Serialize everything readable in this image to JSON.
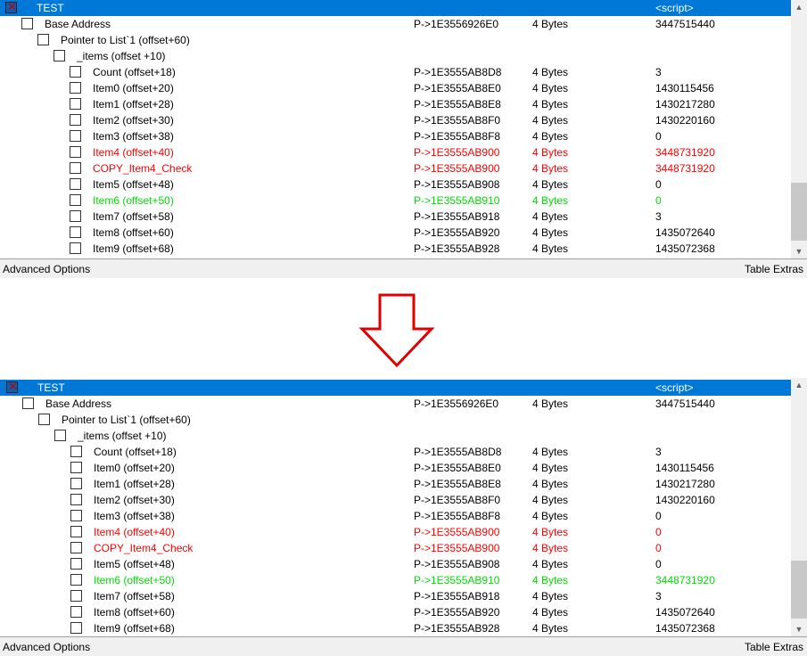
{
  "labels": {
    "advanced_options": "Advanced Options",
    "table_extras": "Table Extras"
  },
  "header_row": {
    "description": "TEST",
    "value": "<script>"
  },
  "panels": [
    {
      "name": "before",
      "rows": [
        {
          "desc": "Base Address",
          "addr": "P->1E3556926E0",
          "type": "4 Bytes",
          "value": "3447515440",
          "color": "normal",
          "indent": 1
        },
        {
          "desc": "Pointer to List`1  (offset+60)",
          "addr": "",
          "type": "",
          "value": "",
          "color": "normal",
          "indent": 2
        },
        {
          "desc": "_items  (offset +10)",
          "addr": "",
          "type": "",
          "value": "",
          "color": "normal",
          "indent": 3
        },
        {
          "desc": "Count  (offset+18)",
          "addr": "P->1E3555AB8D8",
          "type": "4 Bytes",
          "value": "3",
          "color": "normal",
          "indent": 4
        },
        {
          "desc": "Item0  (offset+20)",
          "addr": "P->1E3555AB8E0",
          "type": "4 Bytes",
          "value": "1430115456",
          "color": "normal",
          "indent": 4
        },
        {
          "desc": "Item1  (offset+28)",
          "addr": "P->1E3555AB8E8",
          "type": "4 Bytes",
          "value": "1430217280",
          "color": "normal",
          "indent": 4
        },
        {
          "desc": "Item2  (offset+30)",
          "addr": "P->1E3555AB8F0",
          "type": "4 Bytes",
          "value": "1430220160",
          "color": "normal",
          "indent": 4
        },
        {
          "desc": "Item3  (offset+38)",
          "addr": "P->1E3555AB8F8",
          "type": "4 Bytes",
          "value": "0",
          "color": "normal",
          "indent": 4
        },
        {
          "desc": "Item4  (offset+40)",
          "addr": "P->1E3555AB900",
          "type": "4 Bytes",
          "value": "3448731920",
          "color": "red",
          "indent": 4
        },
        {
          "desc": "COPY_Item4_Check",
          "addr": "P->1E3555AB900",
          "type": "4 Bytes",
          "value": "3448731920",
          "color": "red",
          "indent": 4
        },
        {
          "desc": "Item5  (offset+48)",
          "addr": "P->1E3555AB908",
          "type": "4 Bytes",
          "value": "0",
          "color": "normal",
          "indent": 4
        },
        {
          "desc": "Item6  (offset+50)",
          "addr": "P->1E3555AB910",
          "type": "4 Bytes",
          "value": "0",
          "color": "green",
          "indent": 4
        },
        {
          "desc": "Item7  (offset+58)",
          "addr": "P->1E3555AB918",
          "type": "4 Bytes",
          "value": "3",
          "color": "normal",
          "indent": 4
        },
        {
          "desc": "Item8  (offset+60)",
          "addr": "P->1E3555AB920",
          "type": "4 Bytes",
          "value": "1435072640",
          "color": "normal",
          "indent": 4
        },
        {
          "desc": "Item9  (offset+68)",
          "addr": "P->1E3555AB928",
          "type": "4 Bytes",
          "value": "1435072368",
          "color": "normal",
          "indent": 4
        }
      ]
    },
    {
      "name": "after",
      "rows": [
        {
          "desc": "Base Address",
          "addr": "P->1E3556926E0",
          "type": "4 Bytes",
          "value": "3447515440",
          "color": "normal",
          "indent": 1
        },
        {
          "desc": "Pointer to List`1  (offset+60)",
          "addr": "",
          "type": "",
          "value": "",
          "color": "normal",
          "indent": 2
        },
        {
          "desc": "_items  (offset +10)",
          "addr": "",
          "type": "",
          "value": "",
          "color": "normal",
          "indent": 3
        },
        {
          "desc": "Count  (offset+18)",
          "addr": "P->1E3555AB8D8",
          "type": "4 Bytes",
          "value": "3",
          "color": "normal",
          "indent": 4
        },
        {
          "desc": "Item0  (offset+20)",
          "addr": "P->1E3555AB8E0",
          "type": "4 Bytes",
          "value": "1430115456",
          "color": "normal",
          "indent": 4
        },
        {
          "desc": "Item1  (offset+28)",
          "addr": "P->1E3555AB8E8",
          "type": "4 Bytes",
          "value": "1430217280",
          "color": "normal",
          "indent": 4
        },
        {
          "desc": "Item2  (offset+30)",
          "addr": "P->1E3555AB8F0",
          "type": "4 Bytes",
          "value": "1430220160",
          "color": "normal",
          "indent": 4
        },
        {
          "desc": "Item3  (offset+38)",
          "addr": "P->1E3555AB8F8",
          "type": "4 Bytes",
          "value": "0",
          "color": "normal",
          "indent": 4
        },
        {
          "desc": "Item4  (offset+40)",
          "addr": "P->1E3555AB900",
          "type": "4 Bytes",
          "value": "0",
          "color": "red",
          "indent": 4
        },
        {
          "desc": "COPY_Item4_Check",
          "addr": "P->1E3555AB900",
          "type": "4 Bytes",
          "value": "0",
          "color": "red",
          "indent": 4
        },
        {
          "desc": "Item5  (offset+48)",
          "addr": "P->1E3555AB908",
          "type": "4 Bytes",
          "value": "0",
          "color": "normal",
          "indent": 4
        },
        {
          "desc": "Item6  (offset+50)",
          "addr": "P->1E3555AB910",
          "type": "4 Bytes",
          "value": "3448731920",
          "color": "green",
          "indent": 4
        },
        {
          "desc": "Item7  (offset+58)",
          "addr": "P->1E3555AB918",
          "type": "4 Bytes",
          "value": "3",
          "color": "normal",
          "indent": 4
        },
        {
          "desc": "Item8  (offset+60)",
          "addr": "P->1E3555AB920",
          "type": "4 Bytes",
          "value": "1435072640",
          "color": "normal",
          "indent": 4
        },
        {
          "desc": "Item9  (offset+68)",
          "addr": "P->1E3555AB928",
          "type": "4 Bytes",
          "value": "1435072368",
          "color": "normal",
          "indent": 4
        }
      ]
    }
  ],
  "icons": {
    "arrow": "down-arrow-icon",
    "checkbox_checked": "x-check-icon",
    "scroll_up": "scroll-up-arrow-icon",
    "scroll_down": "scroll-down-arrow-icon"
  },
  "colors": {
    "selection": "#0078d7",
    "red_entry": "#ff0000",
    "green_entry": "#00dd00",
    "arrow_stroke": "#e00000"
  }
}
